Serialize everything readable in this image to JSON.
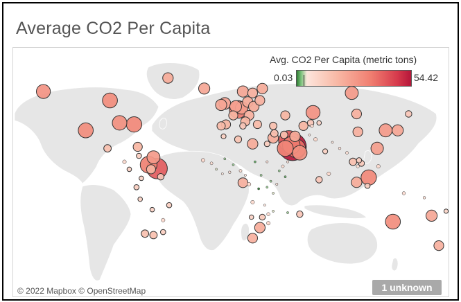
{
  "title": "Average CO2 Per Capita",
  "legend": {
    "title": "Avg. CO2 Per Capita (metric tons)",
    "min_label": "0.03",
    "max_label": "54.42",
    "colors": [
      "#2e7d32",
      "#7fc47f",
      "#fde5dc",
      "#f8b9a6",
      "#f07e70",
      "#d63a4c",
      "#b5173a"
    ]
  },
  "credit": "© 2022 Mapbox © OpenStreetMap",
  "unknown_badge": "1 unknown",
  "chart_data": {
    "type": "scatter",
    "encoding": "symbol map; circle size and color encode average CO2 per capita",
    "color_range": [
      0.03,
      54.42
    ],
    "points": [
      {
        "lon": -155,
        "lat": 62,
        "value": 14
      },
      {
        "lon": -100,
        "lat": 56,
        "value": 16
      },
      {
        "lon": -52,
        "lat": 71,
        "value": 8
      },
      {
        "lon": -22,
        "lat": 64,
        "value": 9
      },
      {
        "lon": 10,
        "lat": 62,
        "value": 9
      },
      {
        "lon": 26,
        "lat": 64,
        "value": 8
      },
      {
        "lon": 18,
        "lat": 61,
        "value": 7
      },
      {
        "lon": -5,
        "lat": 54,
        "value": 10
      },
      {
        "lon": -8,
        "lat": 53,
        "value": 9
      },
      {
        "lon": 4,
        "lat": 52,
        "value": 10
      },
      {
        "lon": 9,
        "lat": 51,
        "value": 11
      },
      {
        "lon": 14,
        "lat": 55,
        "value": 8
      },
      {
        "lon": 24,
        "lat": 56,
        "value": 7
      },
      {
        "lon": 19,
        "lat": 52,
        "value": 8
      },
      {
        "lon": 2,
        "lat": 46,
        "value": 6
      },
      {
        "lon": 15,
        "lat": 46,
        "value": 7
      },
      {
        "lon": -4,
        "lat": 40,
        "value": 6
      },
      {
        "lon": 12,
        "lat": 42,
        "value": 6
      },
      {
        "lon": 22,
        "lat": 40,
        "value": 5
      },
      {
        "lon": -8,
        "lat": 39,
        "value": 5
      },
      {
        "lon": 6,
        "lat": 50,
        "value": 22
      },
      {
        "lon": 100,
        "lat": 61,
        "value": 12
      },
      {
        "lon": 68,
        "lat": 48,
        "value": 14
      },
      {
        "lon": 45,
        "lat": 46,
        "value": 6
      },
      {
        "lon": 35,
        "lat": 39,
        "value": 4
      },
      {
        "lon": 53,
        "lat": 32,
        "value": 8
      },
      {
        "lon": 45,
        "lat": 24,
        "value": 18
      },
      {
        "lon": 51,
        "lat": 25,
        "value": 54.42
      },
      {
        "lon": 54,
        "lat": 24,
        "value": 25
      },
      {
        "lon": 48,
        "lat": 29,
        "value": 30
      },
      {
        "lon": 50,
        "lat": 26,
        "value": 22
      },
      {
        "lon": 57,
        "lat": 21,
        "value": 15
      },
      {
        "lon": 35,
        "lat": 31,
        "value": 8
      },
      {
        "lon": 36,
        "lat": 34,
        "value": 4
      },
      {
        "lon": 44,
        "lat": 33,
        "value": 4
      },
      {
        "lon": 10,
        "lat": 39,
        "value": 3
      },
      {
        "lon": 128,
        "lat": 36,
        "value": 12
      },
      {
        "lon": 138,
        "lat": 36,
        "value": 9
      },
      {
        "lon": 114,
        "lat": 4.5,
        "value": 17
      },
      {
        "lon": 104,
        "lat": 1.3,
        "value": 8
      },
      {
        "lon": 121,
        "lat": 24,
        "value": 11
      },
      {
        "lon": 134,
        "lat": -25,
        "value": 16
      },
      {
        "lon": 172,
        "lat": -41,
        "value": 7
      },
      {
        "lon": 166,
        "lat": -21,
        "value": 9
      },
      {
        "lon": 24,
        "lat": -29,
        "value": 8
      },
      {
        "lon": 18,
        "lat": -36,
        "value": 7
      },
      {
        "lon": -120,
        "lat": 36,
        "value": 16
      },
      {
        "lon": -92,
        "lat": 41,
        "value": 15
      },
      {
        "lon": -80,
        "lat": 40,
        "value": 17
      },
      {
        "lon": -102,
        "lat": 24,
        "value": 4
      },
      {
        "lon": -66,
        "lat": 10,
        "value": 6
      },
      {
        "lon": -61,
        "lat": 10.5,
        "value": 30
      },
      {
        "lon": -58,
        "lat": 5,
        "value": 3
      },
      {
        "lon": -68,
        "lat": 13,
        "value": 20
      },
      {
        "lon": -64,
        "lat": 18,
        "value": 12
      },
      {
        "lon": -76,
        "lat": 19,
        "value": 2
      },
      {
        "lon": -77,
        "lat": 25,
        "value": 6
      },
      {
        "lon": -88,
        "lat": 15,
        "value": 1
      },
      {
        "lon": -84,
        "lat": 10,
        "value": 1.5
      },
      {
        "lon": -71,
        "lat": -33,
        "value": 4
      },
      {
        "lon": -64,
        "lat": -34,
        "value": 4
      },
      {
        "lon": -51,
        "lat": -14,
        "value": 2
      },
      {
        "lon": -56,
        "lat": -24,
        "value": 1
      },
      {
        "lon": -56,
        "lat": -32,
        "value": 2
      },
      {
        "lon": -75,
        "lat": -10,
        "value": 1.5
      },
      {
        "lon": -78,
        "lat": -2,
        "value": 2
      },
      {
        "lon": -74,
        "lat": 4,
        "value": 1.5
      },
      {
        "lon": -65,
        "lat": -17,
        "value": 1.5
      },
      {
        "lon": 78,
        "lat": 22,
        "value": 1.8
      },
      {
        "lon": 70,
        "lat": 30,
        "value": 1
      },
      {
        "lon": 90,
        "lat": 24,
        "value": 0.5
      },
      {
        "lon": 84,
        "lat": 28,
        "value": 0.3
      },
      {
        "lon": 81,
        "lat": 7,
        "value": 1
      },
      {
        "lon": 96,
        "lat": 21,
        "value": 0.6
      },
      {
        "lon": 101,
        "lat": 15,
        "value": 4
      },
      {
        "lon": 106,
        "lat": 16,
        "value": 2
      },
      {
        "lon": 105,
        "lat": 12,
        "value": 0.7
      },
      {
        "lon": 108,
        "lat": 14,
        "value": 2.5
      },
      {
        "lon": 113,
        "lat": -1,
        "value": 2
      },
      {
        "lon": 122,
        "lat": 12,
        "value": 1
      },
      {
        "lon": 143,
        "lat": -6,
        "value": 0.8
      },
      {
        "lon": 160,
        "lat": -9,
        "value": 0.5
      },
      {
        "lon": 178,
        "lat": -18,
        "value": 1.3
      },
      {
        "lon": 147,
        "lat": 47,
        "value": 3
      },
      {
        "lon": 105,
        "lat": 35,
        "value": 7
      },
      {
        "lon": 104,
        "lat": 47,
        "value": 7
      },
      {
        "lon": 66,
        "lat": 41,
        "value": 3
      },
      {
        "lon": 65,
        "lat": 33,
        "value": 0.3
      },
      {
        "lon": 67,
        "lat": 39,
        "value": 0.8
      },
      {
        "lon": 60,
        "lat": 39,
        "value": 6
      },
      {
        "lon": 73,
        "lat": 41,
        "value": 1.5
      },
      {
        "lon": 6,
        "lat": 30,
        "value": 3.5
      },
      {
        "lon": -6,
        "lat": 32,
        "value": 1.8
      },
      {
        "lon": 18,
        "lat": 27,
        "value": 8
      },
      {
        "lon": 30,
        "lat": 27,
        "value": 2.3
      },
      {
        "lon": 30,
        "lat": 15,
        "value": 0.4
      },
      {
        "lon": 40,
        "lat": 9,
        "value": 0.1
      },
      {
        "lon": 38,
        "lat": 0,
        "value": 0.4
      },
      {
        "lon": 35,
        "lat": -6,
        "value": 0.2
      },
      {
        "lon": 23,
        "lat": -3,
        "value": 0.03
      },
      {
        "lon": 18,
        "lat": -12,
        "value": 1
      },
      {
        "lon": 35,
        "lat": -18,
        "value": 0.2
      },
      {
        "lon": 28,
        "lat": -14,
        "value": 0.3
      },
      {
        "lon": 31,
        "lat": -20,
        "value": 0.8
      },
      {
        "lon": 47,
        "lat": -19,
        "value": 0.1
      },
      {
        "lon": 57,
        "lat": -20,
        "value": 3
      },
      {
        "lon": 8,
        "lat": 9,
        "value": 0.6
      },
      {
        "lon": -1,
        "lat": 8,
        "value": 0.5
      },
      {
        "lon": -7,
        "lat": 7,
        "value": 0.3
      },
      {
        "lon": -12,
        "lat": 10,
        "value": 0.2
      },
      {
        "lon": -16,
        "lat": 14,
        "value": 0.6
      },
      {
        "lon": 2,
        "lat": 13,
        "value": 0.1
      },
      {
        "lon": 12,
        "lat": 6,
        "value": 0.3
      },
      {
        "lon": 20,
        "lat": 15,
        "value": 0.05
      },
      {
        "lon": 15,
        "lat": 0,
        "value": 1
      },
      {
        "lon": 10,
        "lat": 1,
        "value": 7
      },
      {
        "lon": -5,
        "lat": 17,
        "value": 0.1
      },
      {
        "lon": 45,
        "lat": 5,
        "value": 0.05
      },
      {
        "lon": 43,
        "lat": 12,
        "value": 0.6
      },
      {
        "lon": 47,
        "lat": 15,
        "value": 0.4
      },
      {
        "lon": 25,
        "lat": 6,
        "value": 0.1
      },
      {
        "lon": 33,
        "lat": 2,
        "value": 0.1
      },
      {
        "lon": 30,
        "lat": -2,
        "value": 0.1
      },
      {
        "lon": 26,
        "lat": -22,
        "value": 2.5
      },
      {
        "lon": 17,
        "lat": -22,
        "value": 1.5
      },
      {
        "lon": 31,
        "lat": -26,
        "value": 1
      },
      {
        "lon": -23,
        "lat": 16,
        "value": 1
      },
      {
        "lon": 73,
        "lat": 3,
        "value": 3
      }
    ]
  }
}
